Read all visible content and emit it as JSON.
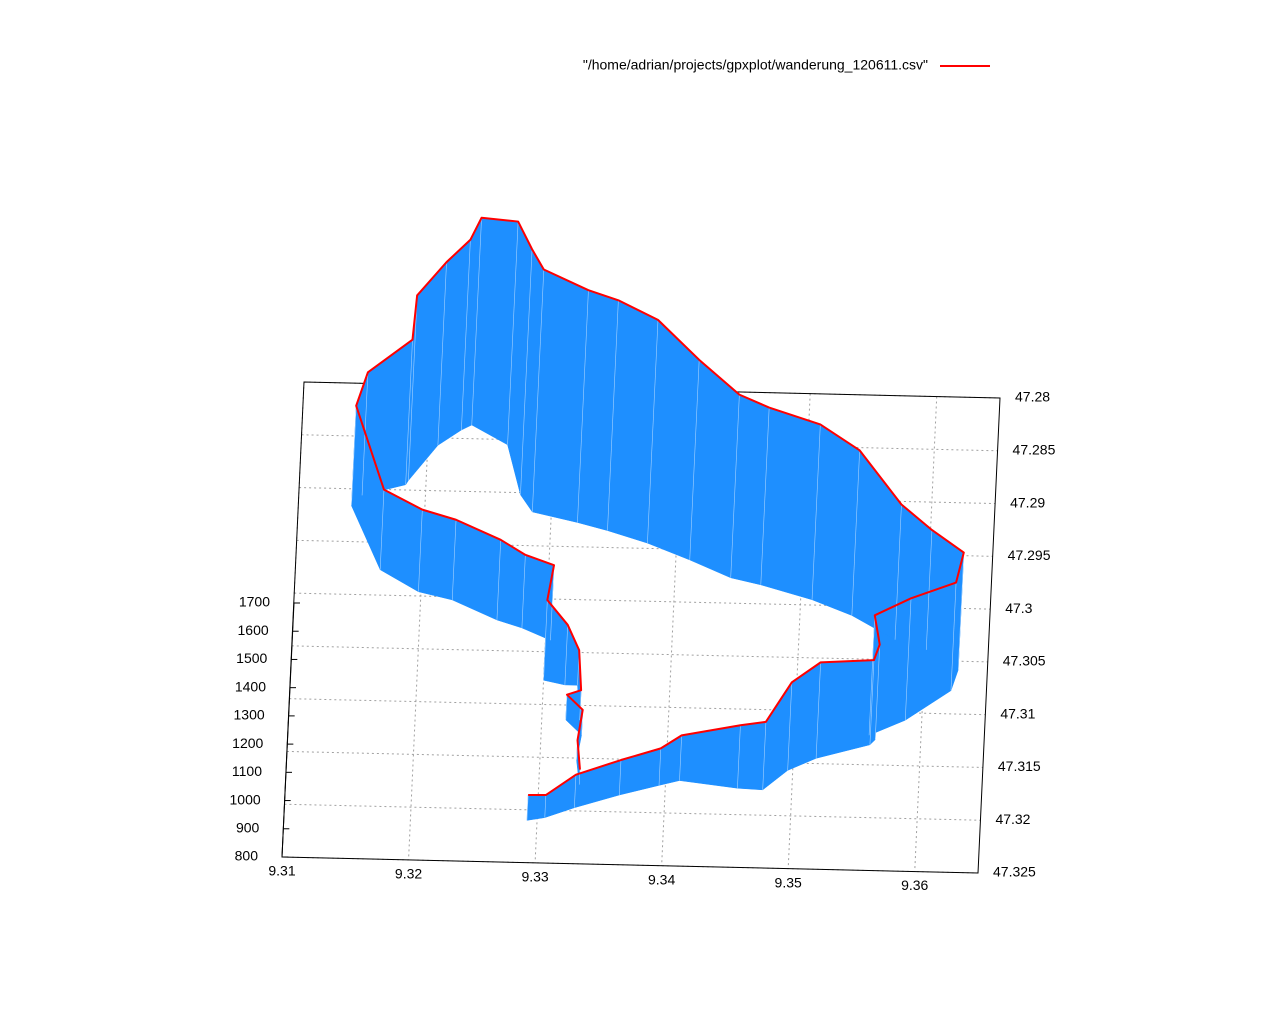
{
  "chart_data": {
    "type": "line3d",
    "legend": "top",
    "grid": true,
    "impulse_color": "#1e8fff",
    "series": [
      {
        "name": "\"/home/adrian/projects/gpxplot/wanderung_120611.csv\"",
        "color": "#ff0000",
        "x": [
          9.3292,
          9.3306,
          9.3329,
          9.3364,
          9.3395,
          9.3411,
          9.3457,
          9.3477,
          9.3496,
          9.3518,
          9.356,
          9.3564,
          9.3559,
          9.3587,
          9.3622,
          9.3627,
          9.3601,
          9.3576,
          9.3541,
          9.3509,
          9.3468,
          9.3444,
          9.3411,
          9.3377,
          9.3345,
          9.3321,
          9.3285,
          9.3275,
          9.3263,
          9.3234,
          9.3226,
          9.3208,
          9.3186,
          9.3184,
          9.315,
          9.3142,
          9.3167,
          9.3198,
          9.3225,
          9.3261,
          9.3281,
          9.3304,
          9.33,
          9.3317,
          9.3327,
          9.333,
          9.3319,
          9.3332,
          9.3329,
          9.3332
        ],
        "y": [
          47.321,
          47.3207,
          47.3197,
          47.3184,
          47.3174,
          47.3169,
          47.3175,
          47.3176,
          47.3157,
          47.3145,
          47.3131,
          47.3126,
          47.3122,
          47.3107,
          47.3078,
          47.3058,
          47.304,
          47.3031,
          47.3009,
          47.2995,
          47.2982,
          47.2976,
          47.296,
          47.2945,
          47.2934,
          47.2927,
          47.2918,
          47.2902,
          47.2855,
          47.2837,
          47.2842,
          47.2857,
          47.2891,
          47.2895,
          47.2906,
          47.2916,
          47.2976,
          47.2996,
          47.3003,
          47.3021,
          47.3028,
          47.3039,
          47.3077,
          47.3081,
          47.3081,
          47.3114,
          47.3114,
          47.3128,
          47.3152,
          47.3175
        ],
        "z": [
          890,
          880,
          917,
          924,
          931,
          960,
          1023,
          1041,
          1112,
          1140,
          1100,
          1137,
          1225,
          1232,
          1183,
          1215,
          1225,
          1279,
          1385,
          1421,
          1428,
          1449,
          1509,
          1591,
          1616,
          1623,
          1659,
          1670,
          1591,
          1534,
          1474,
          1449,
          1456,
          1314,
          1236,
          1154,
          1084,
          1091,
          1084,
          1084,
          1059,
          1066,
          1084,
          1013,
          924,
          906,
          889,
          889,
          871,
          853
        ]
      }
    ],
    "xlim": [
      9.31,
      9.365
    ],
    "xticks": [
      9.31,
      9.32,
      9.33,
      9.34,
      9.35,
      9.36
    ],
    "ylim": [
      47.28,
      47.325
    ],
    "yticks": [
      47.28,
      47.285,
      47.29,
      47.295,
      47.3,
      47.305,
      47.31,
      47.315,
      47.32,
      47.325
    ],
    "zlim": [
      800,
      1700
    ],
    "zticks": [
      800,
      900,
      1000,
      1100,
      1200,
      1300,
      1400,
      1500,
      1600,
      1700
    ]
  }
}
